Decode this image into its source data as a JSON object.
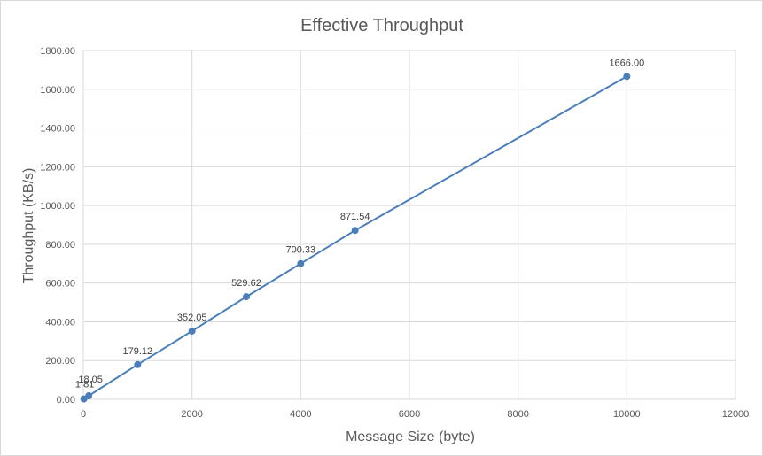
{
  "chart_data": {
    "type": "scatter",
    "title": "Effective Throughput",
    "xlabel": "Message Size (byte)",
    "ylabel": "Throughput (KB/s)",
    "xlim": [
      0,
      12000
    ],
    "ylim": [
      0,
      1800
    ],
    "x_ticks": [
      "0",
      "2000",
      "4000",
      "6000",
      "8000",
      "10000",
      "12000"
    ],
    "y_ticks": [
      "0.00",
      "200.00",
      "400.00",
      "600.00",
      "800.00",
      "1000.00",
      "1200.00",
      "1400.00",
      "1600.00",
      "1800.00"
    ],
    "grid": true,
    "legend": "none",
    "series_color": "#4a7ebb",
    "series": [
      {
        "x": [
          10,
          100,
          1000,
          2000,
          3000,
          4000,
          5000,
          10000
        ],
        "y": [
          1.81,
          18.05,
          179.12,
          352.05,
          529.62,
          700.33,
          871.54,
          1666.0
        ],
        "labels": [
          "1.81",
          "18.05",
          "179.12",
          "352.05",
          "529.62",
          "700.33",
          "871.54",
          "1666.00"
        ]
      }
    ]
  }
}
